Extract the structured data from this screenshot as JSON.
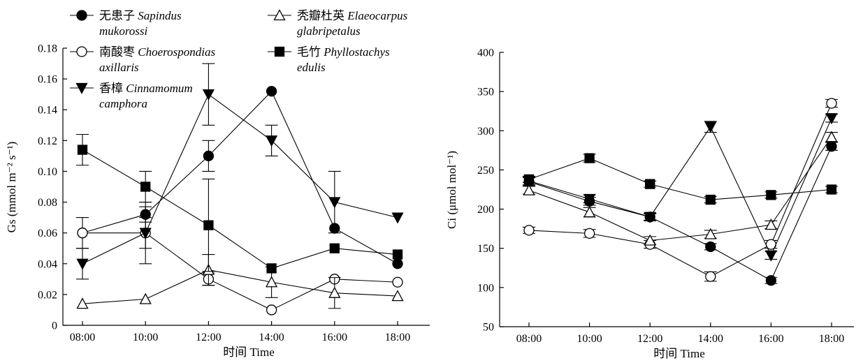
{
  "chart_data": [
    {
      "type": "line",
      "panel": "left",
      "x": [
        "08:00",
        "10:00",
        "12:00",
        "14:00",
        "16:00",
        "18:00"
      ],
      "xlabel": "时间 Time",
      "ylabel": "Gs (mmol m⁻² s⁻¹)",
      "ylim": [
        0,
        0.18
      ],
      "yticks": [
        "0",
        "0.02",
        "0.04",
        "0.06",
        "0.08",
        "0.10",
        "0.12",
        "0.14",
        "0.16",
        "0.18"
      ],
      "grid": false,
      "legend_position": "top-left",
      "series": [
        {
          "key": "sapindus",
          "name_cn": "无患子",
          "name_latin_1": "Sapindus",
          "name_latin_2": "mukorossi",
          "marker": "filled-circle",
          "values": [
            0.06,
            0.072,
            0.11,
            0.152,
            0.063,
            0.04
          ],
          "err": [
            0,
            0.005,
            0.01,
            0,
            0,
            0
          ]
        },
        {
          "key": "choerospondias",
          "name_cn": "南酸枣",
          "name_latin_1": "Choerospondias",
          "name_latin_2": "axillaris",
          "marker": "open-circle",
          "values": [
            0.06,
            0.06,
            0.03,
            0.01,
            0.03,
            0.028
          ],
          "err": [
            0.01,
            0.02,
            0.004,
            0,
            0,
            0
          ]
        },
        {
          "key": "cinnamomum",
          "name_cn": "香樟",
          "name_latin_1": "Cinnamomum",
          "name_latin_2": "camphora",
          "marker": "filled-triangle-down",
          "values": [
            0.04,
            0.06,
            0.15,
            0.12,
            0.08,
            0.07
          ],
          "err": [
            0.01,
            0.01,
            0.02,
            0.01,
            0.02,
            0
          ]
        },
        {
          "key": "elaeocarpus",
          "name_cn": "秃瓣杜英",
          "name_latin_1": "Elaeocarpus",
          "name_latin_2": "glabripetalus",
          "marker": "open-triangle-up",
          "values": [
            0.014,
            0.017,
            0.036,
            0.028,
            0.021,
            0.019
          ],
          "err": [
            0,
            0,
            0.01,
            0.01,
            0.01,
            0
          ]
        },
        {
          "key": "phyllostachys",
          "name_cn": "毛竹",
          "name_latin_1": "Phyllostachys",
          "name_latin_2": "edulis",
          "marker": "filled-square",
          "values": [
            0.114,
            0.09,
            0.065,
            0.037,
            0.05,
            0.046
          ],
          "err": [
            0.01,
            0.01,
            0.03,
            0,
            0,
            0
          ]
        }
      ]
    },
    {
      "type": "line",
      "panel": "right",
      "x": [
        "08:00",
        "10:00",
        "12:00",
        "14:00",
        "16:00",
        "18:00"
      ],
      "xlabel": "时间 Time",
      "ylabel": "Ci (μmol mol⁻¹)",
      "ylim": [
        50,
        400
      ],
      "yticks": [
        "50",
        "100",
        "150",
        "200",
        "250",
        "300",
        "350",
        "400"
      ],
      "grid": false,
      "series": [
        {
          "key": "sapindus",
          "marker": "filled-circle",
          "values": [
            235,
            210,
            190,
            152,
            109,
            280
          ],
          "err": [
            5,
            5,
            4,
            4,
            4,
            5
          ]
        },
        {
          "key": "choerospondias",
          "marker": "open-circle",
          "values": [
            173,
            169,
            155,
            114,
            155,
            335
          ],
          "err": [
            4,
            5,
            5,
            6,
            5,
            5
          ]
        },
        {
          "key": "cinnamomum",
          "marker": "filled-triangle-down",
          "values": [
            236,
            213,
            190,
            305,
            141,
            316
          ],
          "err": [
            5,
            5,
            5,
            7,
            5,
            5
          ]
        },
        {
          "key": "elaeocarpus",
          "marker": "open-triangle-up",
          "values": [
            224,
            196,
            160,
            168,
            180,
            292
          ],
          "err": [
            5,
            6,
            5,
            5,
            5,
            6
          ]
        },
        {
          "key": "phyllostachys",
          "marker": "filled-square",
          "values": [
            238,
            265,
            232,
            212,
            218,
            225
          ],
          "err": [
            4,
            5,
            4,
            4,
            4,
            4
          ]
        }
      ]
    }
  ]
}
